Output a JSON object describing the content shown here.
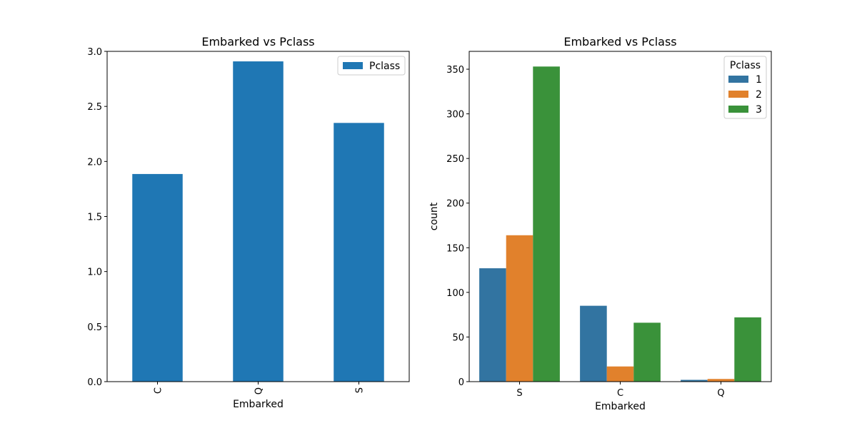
{
  "chart_data": [
    {
      "type": "bar",
      "title": "Embarked vs Pclass",
      "xlabel": "Embarked",
      "ylabel": "",
      "categories": [
        "C",
        "Q",
        "S"
      ],
      "series": [
        {
          "name": "Pclass",
          "values": [
            1.886,
            2.909,
            2.35
          ],
          "color": "#1f77b4"
        }
      ],
      "ylim": [
        0,
        3.0
      ],
      "yticks": [
        0.0,
        0.5,
        1.0,
        1.5,
        2.0,
        2.5,
        3.0
      ],
      "ytick_labels": [
        "0.0",
        "0.5",
        "1.0",
        "1.5",
        "2.0",
        "2.5",
        "3.0"
      ],
      "xtick_rotation": "vertical",
      "grid": false,
      "legend": {
        "placement": "upper right",
        "title": "",
        "entries": [
          "Pclass"
        ]
      }
    },
    {
      "type": "bar",
      "title": "Embarked vs Pclass",
      "xlabel": "Embarked",
      "ylabel": "count",
      "categories": [
        "S",
        "C",
        "Q"
      ],
      "series": [
        {
          "name": "1",
          "values": [
            127,
            85,
            2
          ],
          "color": "#3274a1"
        },
        {
          "name": "2",
          "values": [
            164,
            17,
            3
          ],
          "color": "#e1812c"
        },
        {
          "name": "3",
          "values": [
            353,
            66,
            72
          ],
          "color": "#3a923a"
        }
      ],
      "ylim": [
        0,
        370
      ],
      "yticks": [
        0,
        50,
        100,
        150,
        200,
        250,
        300,
        350
      ],
      "ytick_labels": [
        "0",
        "50",
        "100",
        "150",
        "200",
        "250",
        "300",
        "350"
      ],
      "grid": false,
      "legend": {
        "placement": "upper right",
        "title": "Pclass",
        "entries": [
          "1",
          "2",
          "3"
        ]
      }
    }
  ]
}
